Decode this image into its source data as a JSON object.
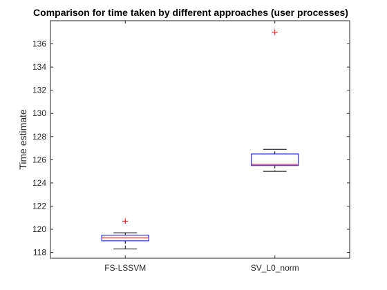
{
  "chart_data": {
    "type": "boxplot",
    "title": "Comparison for time taken by different approaches (user processes)",
    "xlabel": "",
    "ylabel": "Time estimate",
    "ylim": [
      117.5,
      138
    ],
    "yticks": [
      118,
      120,
      122,
      124,
      126,
      128,
      130,
      132,
      134,
      136
    ],
    "grid": false,
    "legend": "none",
    "categories": [
      "FS-LSSVM",
      "SV_L0_norm"
    ],
    "boxes": [
      {
        "category": "FS-LSSVM",
        "whisker_low": 118.3,
        "q1": 119.0,
        "median": 119.25,
        "q3": 119.5,
        "whisker_high": 119.7,
        "outliers": [
          120.7
        ]
      },
      {
        "category": "SV_L0_norm",
        "whisker_low": 125.0,
        "q1": 125.5,
        "median": 125.6,
        "q3": 126.5,
        "whisker_high": 126.9,
        "outliers": [
          137.0
        ]
      }
    ],
    "colors": {
      "box": "#0000ff",
      "median": "#ff0000",
      "whisker": "#000000",
      "outlier": "#ff0000",
      "axes": "#262626"
    }
  }
}
